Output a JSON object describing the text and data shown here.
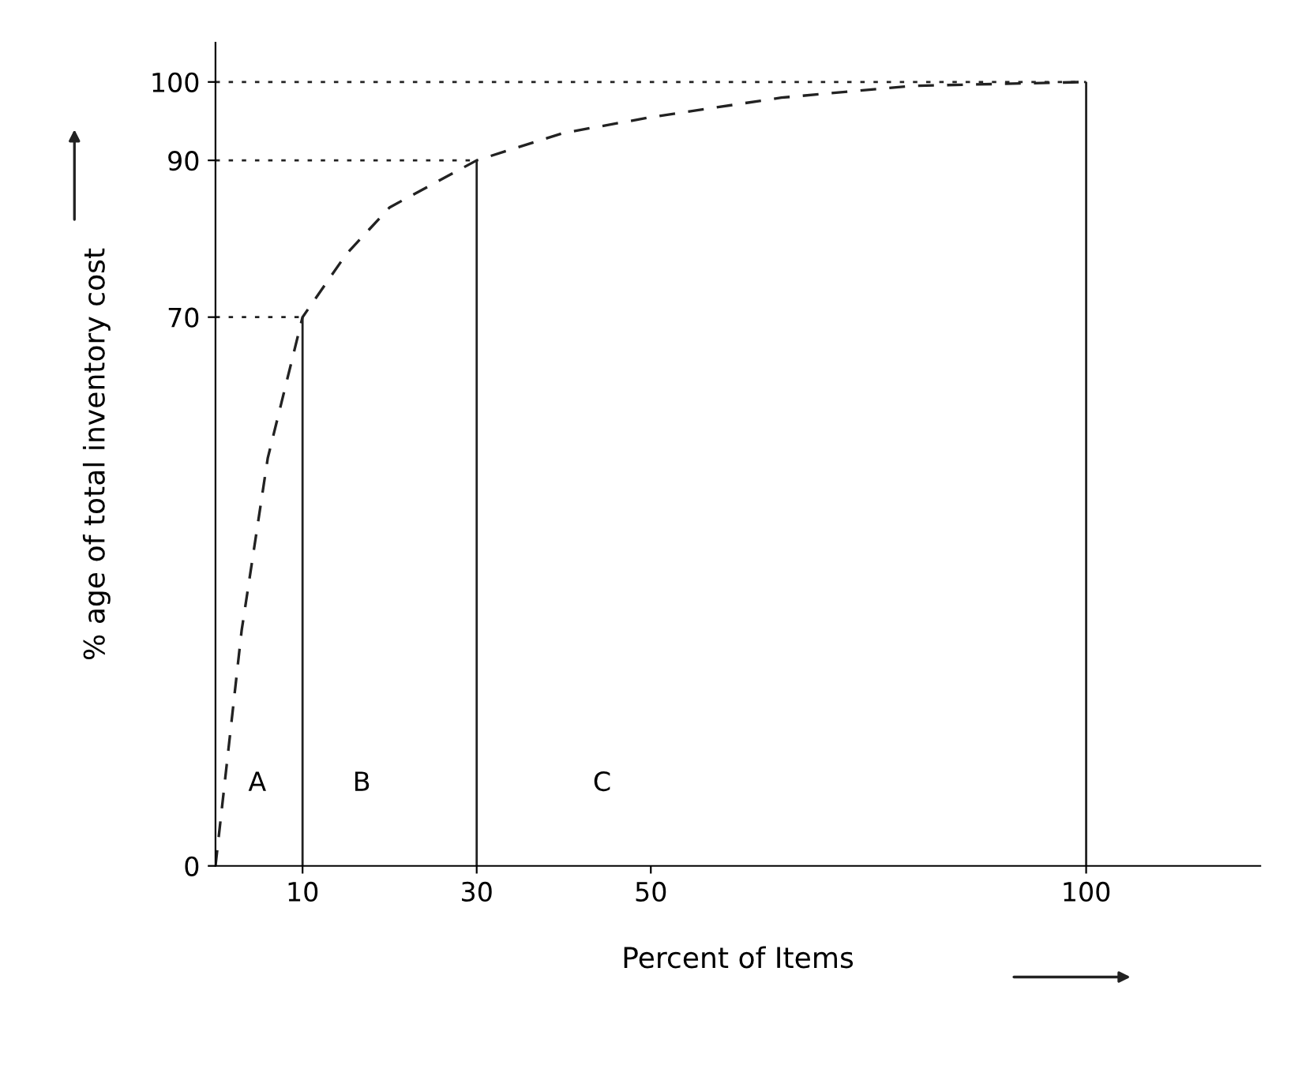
{
  "chart_data": {
    "type": "line",
    "xlabel": "Percent of Items",
    "ylabel": "% age of total inventory cost",
    "x": [
      0,
      3,
      6,
      10,
      15,
      20,
      30,
      40,
      50,
      65,
      80,
      100
    ],
    "series": [
      {
        "color": "#222222",
        "values": [
          0,
          30,
          52,
          70,
          78,
          84,
          90,
          93.5,
          95.5,
          98,
          99.5,
          100
        ]
      }
    ],
    "xlim": [
      0,
      120
    ],
    "ylim": [
      0,
      105
    ],
    "xticks": [
      10,
      30,
      50,
      100
    ],
    "yticks": [
      0,
      70,
      90,
      100
    ],
    "ref_lines": [
      {
        "axis": "y",
        "value": 70,
        "line_style": "dotted"
      },
      {
        "axis": "y",
        "value": 90,
        "line_style": "dotted"
      },
      {
        "axis": "y",
        "value": 100,
        "line_style": "dotted"
      },
      {
        "axis": "x",
        "value": 10,
        "line_style": "solid"
      },
      {
        "axis": "x",
        "value": 30,
        "line_style": "solid"
      },
      {
        "axis": "x",
        "value": 100,
        "line_style": "solid"
      }
    ],
    "annotations": [
      "A",
      "B",
      "C"
    ],
    "marker": "none",
    "line_style": "dashed",
    "grid": false
  }
}
